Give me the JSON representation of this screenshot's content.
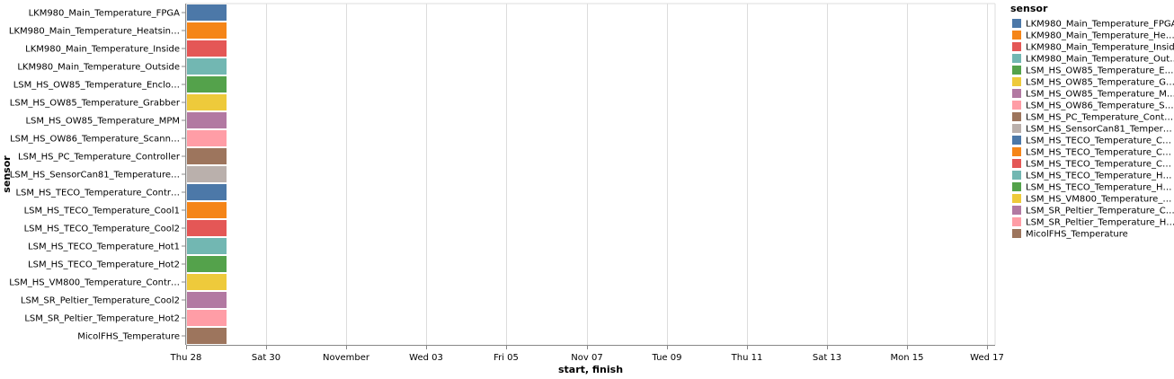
{
  "chart_data": {
    "type": "bar",
    "subtype": "gantt",
    "x_axis_title": "start, finish",
    "y_axis_title": "sensor",
    "x_ticks": [
      "Thu 28",
      "Sat 30",
      "November",
      "Wed 03",
      "Fri 05",
      "Nov 07",
      "Tue 09",
      "Thu 11",
      "Sat 13",
      "Mon 15",
      "Wed 17"
    ],
    "grid": true,
    "legend": {
      "title": "sensor",
      "placement": "top-right",
      "labels": [
        "LKM980_Main_Temperature_FPGA",
        "LKM980_Main_Temperature_He…",
        "LKM980_Main_Temperature_Inside",
        "LKM980_Main_Temperature_Out…",
        "LSM_HS_OW85_Temperature_E…",
        "LSM_HS_OW85_Temperature_G…",
        "LSM_HS_OW85_Temperature_M…",
        "LSM_HS_OW86_Temperature_S…",
        "LSM_HS_PC_Temperature_Cont…",
        "LSM_HS_SensorCan81_Temper…",
        "LSM_HS_TECO_Temperature_C…",
        "LSM_HS_TECO_Temperature_C…",
        "LSM_HS_TECO_Temperature_C…",
        "LSM_HS_TECO_Temperature_H…",
        "LSM_HS_TECO_Temperature_H…",
        "LSM_HS_VM800_Temperature_…",
        "LSM_SR_Peltier_Temperature_C…",
        "LSM_SR_Peltier_Temperature_H…",
        "MicolFHS_Temperature"
      ]
    },
    "categories": [
      "LKM980_Main_Temperature_FPGA",
      "LKM980_Main_Temperature_Heatsin…",
      "LKM980_Main_Temperature_Inside",
      "LKM980_Main_Temperature_Outside",
      "LSM_HS_OW85_Temperature_Enclo…",
      "LSM_HS_OW85_Temperature_Grabber",
      "LSM_HS_OW85_Temperature_MPM",
      "LSM_HS_OW86_Temperature_Scann…",
      "LSM_HS_PC_Temperature_Controller",
      "LSM_HS_SensorCan81_Temperature…",
      "LSM_HS_TECO_Temperature_Contr…",
      "LSM_HS_TECO_Temperature_Cool1",
      "LSM_HS_TECO_Temperature_Cool2",
      "LSM_HS_TECO_Temperature_Hot1",
      "LSM_HS_TECO_Temperature_Hot2",
      "LSM_HS_VM800_Temperature_Contr…",
      "LSM_SR_Peltier_Temperature_Cool2",
      "LSM_SR_Peltier_Temperature_Hot2",
      "MicolFHS_Temperature"
    ],
    "bars": [
      {
        "start": 0,
        "finish": 1
      },
      {
        "start": 0,
        "finish": 1
      },
      {
        "start": 0,
        "finish": 1
      },
      {
        "start": 0,
        "finish": 1
      },
      {
        "start": 0,
        "finish": 1
      },
      {
        "start": 0,
        "finish": 1
      },
      {
        "start": 0,
        "finish": 1
      },
      {
        "start": 0,
        "finish": 1
      },
      {
        "start": 0,
        "finish": 1
      },
      {
        "start": 0,
        "finish": 1
      },
      {
        "start": 0,
        "finish": 1
      },
      {
        "start": 0,
        "finish": 1
      },
      {
        "start": 0,
        "finish": 1
      },
      {
        "start": 0,
        "finish": 1
      },
      {
        "start": 0,
        "finish": 1
      },
      {
        "start": 0,
        "finish": 1
      },
      {
        "start": 0,
        "finish": 1
      },
      {
        "start": 0,
        "finish": 1
      },
      {
        "start": 0,
        "finish": 1
      }
    ],
    "x_domain": [
      0,
      20
    ],
    "colors": [
      "#4c78a8",
      "#f58518",
      "#e45756",
      "#72b7b2",
      "#54a24b",
      "#eeca3b",
      "#b279a2",
      "#ff9da6",
      "#9d755d",
      "#bab0ac",
      "#4c78a8",
      "#f58518",
      "#e45756",
      "#72b7b2",
      "#54a24b",
      "#eeca3b",
      "#b279a2",
      "#ff9da6",
      "#9d755d"
    ]
  }
}
